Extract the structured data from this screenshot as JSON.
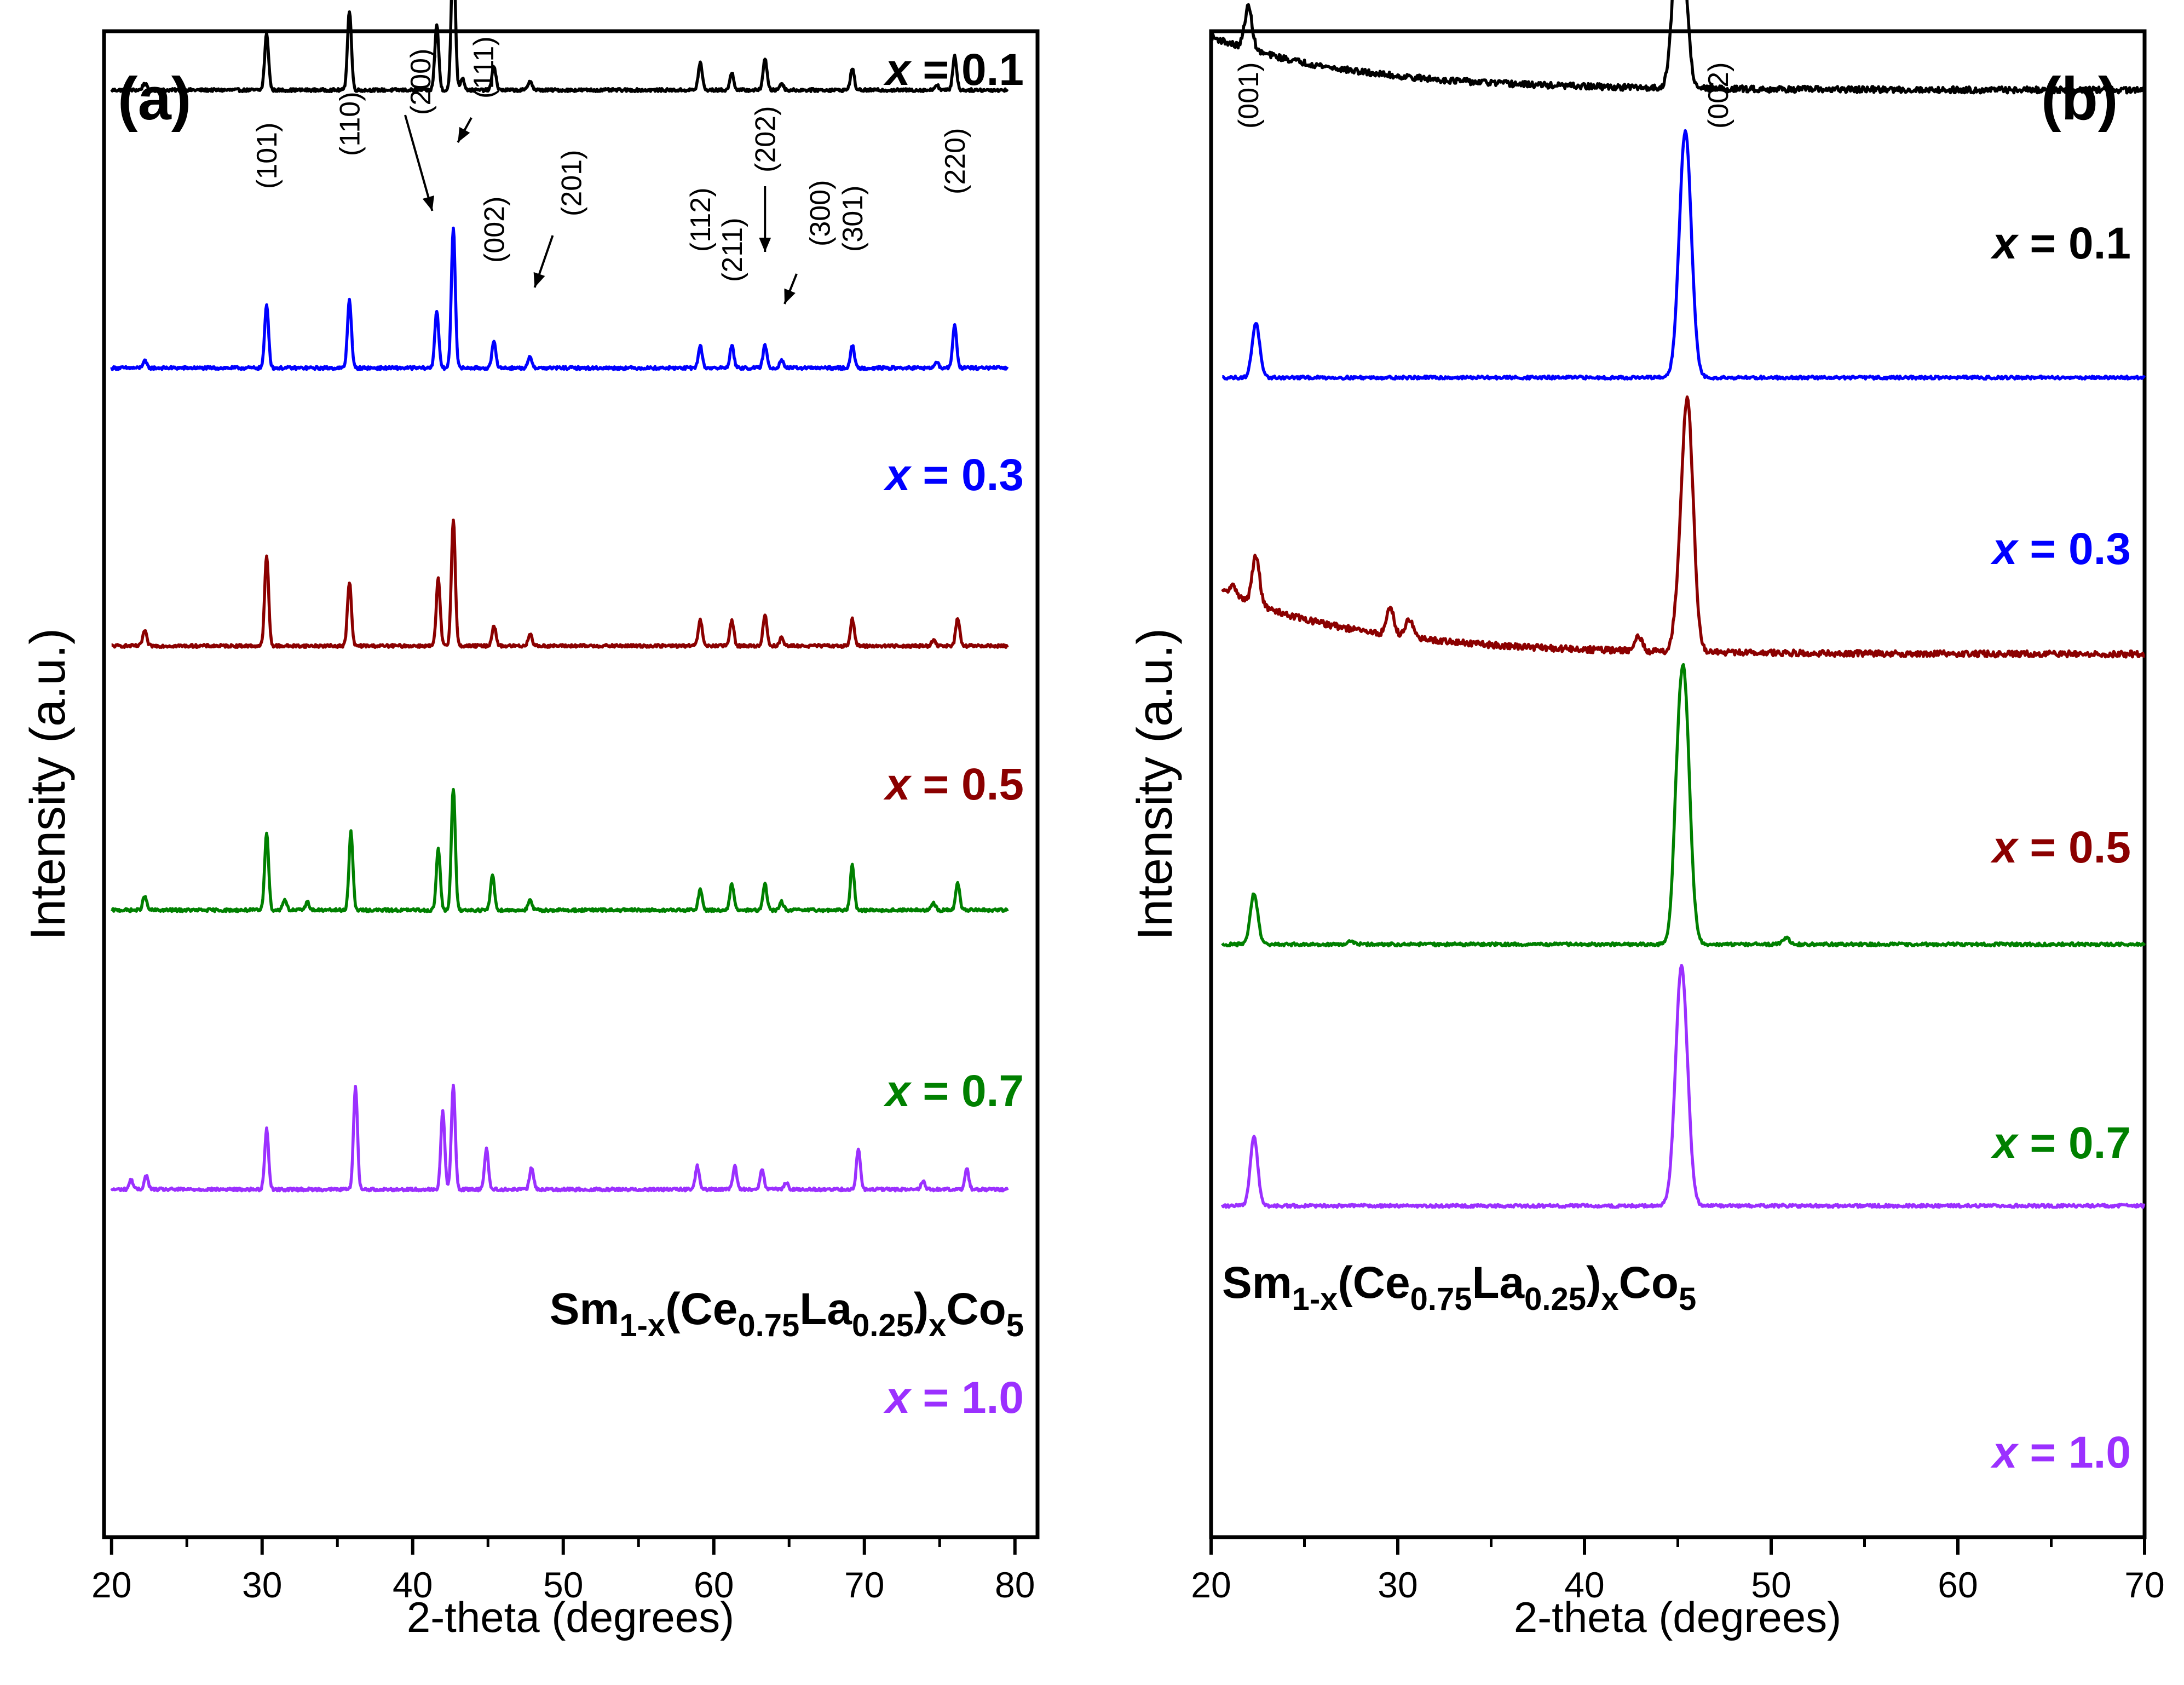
{
  "chart_data": [
    {
      "type": "line",
      "panel_label": "(a)",
      "xlabel": "2-theta (degrees)",
      "ylabel": "Intensity (a.u.)",
      "xlim": [
        19.5,
        81.5
      ],
      "xticks": [
        20,
        30,
        40,
        50,
        60,
        70,
        80
      ],
      "y_ticks_shown": false,
      "legend_title": {
        "base": "Sm",
        "sub1": "1-x",
        "mid1": "(Ce",
        "sub2": "0.75",
        "mid2": "La",
        "sub3": "0.25",
        "mid3": ")",
        "sub4": "x",
        "mid4": "Co",
        "sub5": "5"
      },
      "peak_labels": [
        {
          "hkl": "(101)",
          "two_theta": 30.3
        },
        {
          "hkl": "(110)",
          "two_theta": 35.8
        },
        {
          "hkl": "(200)",
          "two_theta": 41.6
        },
        {
          "hkl": "(111)",
          "two_theta": 42.7
        },
        {
          "hkl": "(002)",
          "two_theta": 45.4
        },
        {
          "hkl": "(201)",
          "two_theta": 47.8
        },
        {
          "hkl": "(112)",
          "two_theta": 59.1
        },
        {
          "hkl": "(211)",
          "two_theta": 61.2
        },
        {
          "hkl": "(202)",
          "two_theta": 63.4
        },
        {
          "hkl": "(300)",
          "two_theta": 64.5
        },
        {
          "hkl": "(301)",
          "two_theta": 69.2
        },
        {
          "hkl": "(220)",
          "two_theta": 76.0
        }
      ],
      "series": [
        {
          "name": "x = 0.1",
          "x_value": "0.1",
          "color": "#000000",
          "x_range": [
            20,
            79.5
          ],
          "baseline": 0.86,
          "peaks": [
            [
              22.2,
              0.1
            ],
            [
              30.3,
              0.82
            ],
            [
              35.8,
              1.16
            ],
            [
              41.6,
              0.95
            ],
            [
              42.7,
              2.17
            ],
            [
              43.3,
              0.18
            ],
            [
              45.4,
              0.35
            ],
            [
              47.8,
              0.14
            ],
            [
              59.1,
              0.4
            ],
            [
              61.2,
              0.25
            ],
            [
              63.4,
              0.46
            ],
            [
              64.5,
              0.1
            ],
            [
              69.2,
              0.31
            ],
            [
              74.8,
              0.08
            ],
            [
              76.0,
              0.5
            ]
          ]
        },
        {
          "name": "x = 0.3",
          "x_value": "0.3",
          "color": "#0000ff",
          "x_range": [
            20,
            79.5
          ],
          "baseline": 4.92,
          "peaks": [
            [
              22.2,
              0.1
            ],
            [
              30.3,
              0.92
            ],
            [
              35.8,
              1.0
            ],
            [
              41.6,
              0.84
            ],
            [
              42.7,
              2.05
            ],
            [
              45.4,
              0.38
            ],
            [
              47.8,
              0.16
            ],
            [
              59.1,
              0.32
            ],
            [
              61.2,
              0.33
            ],
            [
              63.4,
              0.33
            ],
            [
              64.5,
              0.12
            ],
            [
              69.2,
              0.33
            ],
            [
              74.8,
              0.08
            ],
            [
              76.0,
              0.64
            ]
          ]
        },
        {
          "name": "x = 0.5",
          "x_value": "0.5",
          "color": "#8b0000",
          "x_range": [
            20,
            79.5
          ],
          "baseline": 8.98,
          "peaks": [
            [
              22.2,
              0.22
            ],
            [
              30.3,
              1.32
            ],
            [
              35.8,
              0.94
            ],
            [
              41.7,
              0.98
            ],
            [
              42.7,
              1.85
            ],
            [
              45.4,
              0.3
            ],
            [
              47.8,
              0.18
            ],
            [
              59.1,
              0.38
            ],
            [
              61.2,
              0.38
            ],
            [
              63.4,
              0.46
            ],
            [
              64.5,
              0.12
            ],
            [
              69.2,
              0.39
            ],
            [
              74.6,
              0.08
            ],
            [
              76.2,
              0.4
            ]
          ]
        },
        {
          "name": "x = 0.7",
          "x_value": "0.7",
          "color": "#008000",
          "x_range": [
            20,
            79.5
          ],
          "baseline": 12.84,
          "peaks": [
            [
              22.2,
              0.2
            ],
            [
              30.3,
              1.14
            ],
            [
              31.5,
              0.16
            ],
            [
              33.0,
              0.12
            ],
            [
              35.9,
              1.14
            ],
            [
              41.7,
              0.9
            ],
            [
              42.7,
              1.78
            ],
            [
              45.3,
              0.52
            ],
            [
              47.8,
              0.14
            ],
            [
              59.1,
              0.3
            ],
            [
              61.2,
              0.38
            ],
            [
              63.4,
              0.38
            ],
            [
              64.5,
              0.12
            ],
            [
              69.2,
              0.66
            ],
            [
              74.6,
              0.1
            ],
            [
              76.2,
              0.4
            ]
          ]
        },
        {
          "name": "x = 1.0",
          "x_value": "1.0",
          "color": "#9b30ff",
          "x_range": [
            20,
            79.5
          ],
          "baseline": 16.92,
          "peaks": [
            [
              21.3,
              0.14
            ],
            [
              22.3,
              0.2
            ],
            [
              30.3,
              0.88
            ],
            [
              36.2,
              1.5
            ],
            [
              42.0,
              1.14
            ],
            [
              42.7,
              1.5
            ],
            [
              44.9,
              0.6
            ],
            [
              47.9,
              0.32
            ],
            [
              58.9,
              0.34
            ],
            [
              61.4,
              0.34
            ],
            [
              63.2,
              0.3
            ],
            [
              64.8,
              0.1
            ],
            [
              69.6,
              0.6
            ],
            [
              73.9,
              0.12
            ],
            [
              76.8,
              0.3
            ]
          ]
        }
      ]
    },
    {
      "type": "line",
      "panel_label": "(b)",
      "xlabel": "2-theta (degrees)",
      "ylabel": "Intensity (a.u.)",
      "xlim": [
        20,
        70
      ],
      "xticks": [
        20,
        30,
        40,
        50,
        60,
        70
      ],
      "y_ticks_shown": false,
      "legend_title": {
        "base": "Sm",
        "sub1": "1-x",
        "mid1": "(Ce",
        "sub2": "0.75",
        "mid2": "La",
        "sub3": "0.25",
        "mid3": ")",
        "sub4": "x",
        "mid4": "Co",
        "sub5": "5"
      },
      "peak_labels": [
        {
          "hkl": "(001)",
          "two_theta": 22.0
        },
        {
          "hkl": "(002)",
          "two_theta": 45.1
        }
      ],
      "series": [
        {
          "name": "x = 0.1",
          "x_value": "0.1",
          "color": "#000000",
          "x_range": [
            20,
            70
          ],
          "baseline": 0.86,
          "hump": 0.78,
          "peaks": [
            [
              22.0,
              0.62
            ],
            [
              45.1,
              2.8
            ]
          ]
        },
        {
          "name": "x = 0.3",
          "x_value": "0.3",
          "color": "#0000ff",
          "x_range": [
            20.6,
            70
          ],
          "baseline": 5.06,
          "peaks": [
            [
              22.4,
              0.8
            ],
            [
              45.4,
              3.6
            ]
          ]
        },
        {
          "name": "x = 0.5",
          "x_value": "0.5",
          "color": "#8b0000",
          "x_range": [
            20.6,
            70
          ],
          "baseline": 9.1,
          "hump": 0.92,
          "peaks": [
            [
              21.2,
              0.14
            ],
            [
              22.4,
              0.7
            ],
            [
              29.6,
              0.4
            ],
            [
              30.6,
              0.28
            ],
            [
              42.9,
              0.2
            ],
            [
              44.9,
              0.24
            ],
            [
              45.5,
              3.7
            ]
          ]
        },
        {
          "name": "x = 0.7",
          "x_value": "0.7",
          "color": "#008000",
          "x_range": [
            20.6,
            70
          ],
          "baseline": 13.34,
          "peaks": [
            [
              22.3,
              0.74
            ],
            [
              27.5,
              0.04
            ],
            [
              44.9,
              0.6
            ],
            [
              45.3,
              4.0
            ],
            [
              50.8,
              0.09
            ]
          ]
        },
        {
          "name": "x = 1.0",
          "x_value": "1.0",
          "color": "#9b30ff",
          "x_range": [
            20.6,
            70
          ],
          "baseline": 17.16,
          "peaks": [
            [
              22.3,
              1.0
            ],
            [
              45.2,
              3.5
            ]
          ]
        }
      ]
    }
  ]
}
